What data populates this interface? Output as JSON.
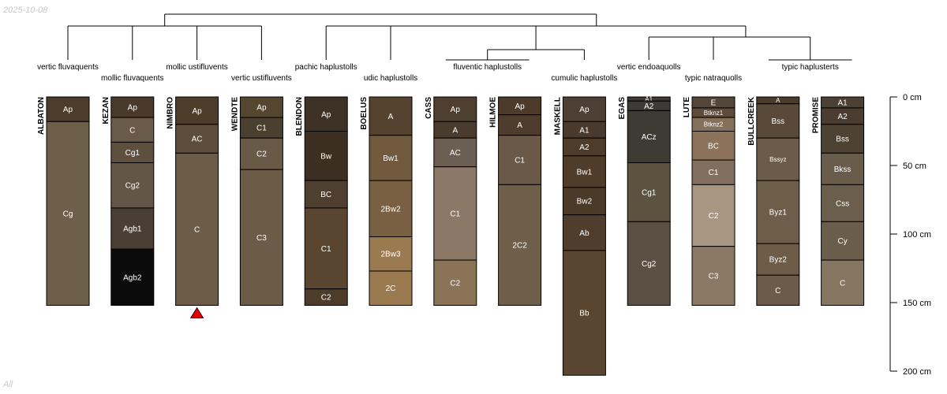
{
  "meta": {
    "date_stamp": "2025-10-08",
    "footer_label": "All"
  },
  "depth_axis": {
    "max_cm": 200,
    "ticks": [
      {
        "value": 0,
        "label": "0 cm"
      },
      {
        "value": 50,
        "label": "50 cm"
      },
      {
        "value": 100,
        "label": "100 cm"
      },
      {
        "value": 150,
        "label": "150 cm"
      },
      {
        "value": 200,
        "label": "200 cm"
      }
    ]
  },
  "taxa": [
    {
      "id": "vertic_fluvaquents",
      "label": "vertic fluvaquents",
      "profiles": [
        0
      ]
    },
    {
      "id": "mollic_fluvaquents",
      "label": "mollic fluvaquents",
      "profiles": [
        1
      ]
    },
    {
      "id": "mollic_ustifluvents",
      "label": "mollic ustifluvents",
      "profiles": [
        2
      ]
    },
    {
      "id": "vertic_ustifluvents",
      "label": "vertic ustifluvents",
      "profiles": [
        3
      ]
    },
    {
      "id": "pachic_haplustolls",
      "label": "pachic haplustolls",
      "profiles": [
        4
      ]
    },
    {
      "id": "udic_haplustolls",
      "label": "udic haplustolls",
      "profiles": [
        5
      ]
    },
    {
      "id": "fluventic_haplustolls",
      "label": "fluventic haplustolls",
      "profiles": [
        6,
        7
      ]
    },
    {
      "id": "cumulic_haplustolls",
      "label": "cumulic haplustolls",
      "profiles": [
        8
      ]
    },
    {
      "id": "vertic_endoaquolls",
      "label": "vertic endoaquolls",
      "profiles": [
        9
      ]
    },
    {
      "id": "typic_natraquolls",
      "label": "typic natraquolls",
      "profiles": [
        10
      ]
    },
    {
      "id": "typic_haplusterts",
      "label": "typic haplusterts",
      "profiles": [
        11,
        12
      ]
    }
  ],
  "dendrogram": {
    "merges": [
      {
        "children": [
          "vertic_fluvaquents",
          "mollic_fluvaquents"
        ]
      },
      {
        "children": [
          "mollic_ustifluvents",
          "vertic_ustifluvents"
        ]
      },
      {
        "children": [
          "pachic_haplustolls",
          "udic_haplustolls"
        ]
      },
      {
        "children": [
          "fluventic_haplustolls",
          "cumulic_haplustolls"
        ]
      },
      {
        "children": [
          "vertic_endoaquolls",
          "typic_natraquolls"
        ]
      },
      {
        "children": [
          "m1",
          "m2"
        ]
      },
      {
        "children": [
          "m3",
          "m4"
        ]
      },
      {
        "children": [
          "m5",
          "typic_haplusterts"
        ]
      },
      {
        "children": [
          "m7",
          "m8"
        ]
      },
      {
        "children": [
          "m6",
          "m9"
        ]
      }
    ]
  },
  "profiles": [
    {
      "name": "ALBATON",
      "horizons": [
        {
          "name": "Ap",
          "top": 0,
          "bottom": 18,
          "color": "#4d3c2c"
        },
        {
          "name": "Cg",
          "top": 18,
          "bottom": 152,
          "color": "#6e5f4a"
        }
      ]
    },
    {
      "name": "KEZAN",
      "horizons": [
        {
          "name": "Ap",
          "top": 0,
          "bottom": 15,
          "color": "#4a3a2c"
        },
        {
          "name": "C",
          "top": 15,
          "bottom": 33,
          "color": "#6a5a4a"
        },
        {
          "name": "Cg1",
          "top": 33,
          "bottom": 48,
          "color": "#5e4f3e"
        },
        {
          "name": "Cg2",
          "top": 48,
          "bottom": 81,
          "color": "#645646"
        },
        {
          "name": "Agb1",
          "top": 81,
          "bottom": 111,
          "color": "#4a3f35"
        },
        {
          "name": "Agb2",
          "top": 111,
          "bottom": 152,
          "color": "#0b0b0b"
        }
      ]
    },
    {
      "name": "NIMBRO",
      "horizons": [
        {
          "name": "Ap",
          "top": 0,
          "bottom": 20,
          "color": "#4f3d2c"
        },
        {
          "name": "AC",
          "top": 20,
          "bottom": 41,
          "color": "#5e4d3c"
        },
        {
          "name": "C",
          "top": 41,
          "bottom": 152,
          "color": "#6c5c48"
        }
      ],
      "marker": "triangle"
    },
    {
      "name": "WENDTE",
      "horizons": [
        {
          "name": "Ap",
          "top": 0,
          "bottom": 15,
          "color": "#54462f"
        },
        {
          "name": "C1",
          "top": 15,
          "bottom": 30,
          "color": "#4b3f30"
        },
        {
          "name": "C2",
          "top": 30,
          "bottom": 53,
          "color": "#685a47"
        },
        {
          "name": "C3",
          "top": 53,
          "bottom": 152,
          "color": "#6b5c48"
        }
      ]
    },
    {
      "name": "BLENDON",
      "horizons": [
        {
          "name": "Ap",
          "top": 0,
          "bottom": 25,
          "color": "#3e3227"
        },
        {
          "name": "Bw",
          "top": 25,
          "bottom": 61,
          "color": "#3c2e21"
        },
        {
          "name": "BC",
          "top": 61,
          "bottom": 81,
          "color": "#4e3f30"
        },
        {
          "name": "C1",
          "top": 81,
          "bottom": 140,
          "color": "#5a4630"
        },
        {
          "name": "C2",
          "top": 140,
          "bottom": 152,
          "color": "#4e3c2a"
        }
      ]
    },
    {
      "name": "BOELUS",
      "horizons": [
        {
          "name": "A",
          "top": 0,
          "bottom": 28,
          "color": "#55432f"
        },
        {
          "name": "Bw1",
          "top": 28,
          "bottom": 61,
          "color": "#715a3e"
        },
        {
          "name": "2Bw2",
          "top": 61,
          "bottom": 102,
          "color": "#7a6042"
        },
        {
          "name": "2Bw3",
          "top": 102,
          "bottom": 127,
          "color": "#9b7a52"
        },
        {
          "name": "2C",
          "top": 127,
          "bottom": 152,
          "color": "#9c7a50"
        }
      ]
    },
    {
      "name": "CASS",
      "horizons": [
        {
          "name": "Ap",
          "top": 0,
          "bottom": 18,
          "color": "#4e3f30"
        },
        {
          "name": "A",
          "top": 18,
          "bottom": 30,
          "color": "#4a3b2c"
        },
        {
          "name": "AC",
          "top": 30,
          "bottom": 51,
          "color": "#6a5f52"
        },
        {
          "name": "C1",
          "top": 51,
          "bottom": 119,
          "color": "#8b7866"
        },
        {
          "name": "C2",
          "top": 119,
          "bottom": 152,
          "color": "#8a7357"
        }
      ]
    },
    {
      "name": "HILMOE",
      "horizons": [
        {
          "name": "Ap",
          "top": 0,
          "bottom": 13,
          "color": "#4c3b2b"
        },
        {
          "name": "A",
          "top": 13,
          "bottom": 28,
          "color": "#4e3c2c"
        },
        {
          "name": "C1",
          "top": 28,
          "bottom": 64,
          "color": "#6a5849"
        },
        {
          "name": "2C2",
          "top": 64,
          "bottom": 152,
          "color": "#6e5f4a"
        }
      ]
    },
    {
      "name": "MASKELL",
      "horizons": [
        {
          "name": "Ap",
          "top": 0,
          "bottom": 18,
          "color": "#4e4035"
        },
        {
          "name": "A1",
          "top": 18,
          "bottom": 30,
          "color": "#4a3a2d"
        },
        {
          "name": "A2",
          "top": 30,
          "bottom": 43,
          "color": "#4d3c2c"
        },
        {
          "name": "Bw1",
          "top": 43,
          "bottom": 66,
          "color": "#4f3c2a"
        },
        {
          "name": "Bw2",
          "top": 66,
          "bottom": 86,
          "color": "#4c3a29"
        },
        {
          "name": "Ab",
          "top": 86,
          "bottom": 112,
          "color": "#4f3d2e"
        },
        {
          "name": "Bb",
          "top": 112,
          "bottom": 203,
          "color": "#5a4530"
        }
      ]
    },
    {
      "name": "EGAS",
      "horizons": [
        {
          "name": "A1",
          "top": 0,
          "bottom": 3,
          "color": "#3e3a35"
        },
        {
          "name": "A2",
          "top": 3,
          "bottom": 10,
          "color": "#3b3a36"
        },
        {
          "name": "ACz",
          "top": 10,
          "bottom": 48,
          "color": "#3e3b32"
        },
        {
          "name": "Cg1",
          "top": 48,
          "bottom": 91,
          "color": "#5b5340"
        },
        {
          "name": "Cg2",
          "top": 91,
          "bottom": 152,
          "color": "#5a5144"
        }
      ]
    },
    {
      "name": "LUTE",
      "horizons": [
        {
          "name": "E",
          "top": 0,
          "bottom": 8,
          "color": "#544638"
        },
        {
          "name": "Btknz1",
          "top": 8,
          "bottom": 15,
          "color": "#5e4b39"
        },
        {
          "name": "Btknz2",
          "top": 15,
          "bottom": 25,
          "color": "#85705a"
        },
        {
          "name": "BC",
          "top": 25,
          "bottom": 46,
          "color": "#8c7258"
        },
        {
          "name": "C1",
          "top": 46,
          "bottom": 64,
          "color": "#836f60"
        },
        {
          "name": "C2",
          "top": 64,
          "bottom": 109,
          "color": "#a89683"
        },
        {
          "name": "C3",
          "top": 109,
          "bottom": 152,
          "color": "#8b7865"
        }
      ]
    },
    {
      "name": "BULLCREEK",
      "horizons": [
        {
          "name": "A",
          "top": 0,
          "bottom": 5,
          "color": "#4a3b2c"
        },
        {
          "name": "Bss",
          "top": 5,
          "bottom": 30,
          "color": "#5a4838"
        },
        {
          "name": "Bssyz",
          "top": 30,
          "bottom": 61,
          "color": "#6b5b48"
        },
        {
          "name": "Byz1",
          "top": 61,
          "bottom": 107,
          "color": "#6e5d49"
        },
        {
          "name": "Byz2",
          "top": 107,
          "bottom": 130,
          "color": "#6e5c48"
        },
        {
          "name": "C",
          "top": 130,
          "bottom": 152,
          "color": "#6c5b48"
        }
      ]
    },
    {
      "name": "PROMISE",
      "horizons": [
        {
          "name": "A1",
          "top": 0,
          "bottom": 8,
          "color": "#4c3f33"
        },
        {
          "name": "A2",
          "top": 8,
          "bottom": 20,
          "color": "#4a3c30"
        },
        {
          "name": "Bss",
          "top": 20,
          "bottom": 41,
          "color": "#4e4233"
        },
        {
          "name": "Bkss",
          "top": 41,
          "bottom": 64,
          "color": "#6a5c4b"
        },
        {
          "name": "Css",
          "top": 64,
          "bottom": 91,
          "color": "#6c5e4c"
        },
        {
          "name": "Cy",
          "top": 91,
          "bottom": 119,
          "color": "#6b5d4b"
        },
        {
          "name": "C",
          "top": 119,
          "bottom": 152,
          "color": "#857662"
        }
      ]
    }
  ]
}
